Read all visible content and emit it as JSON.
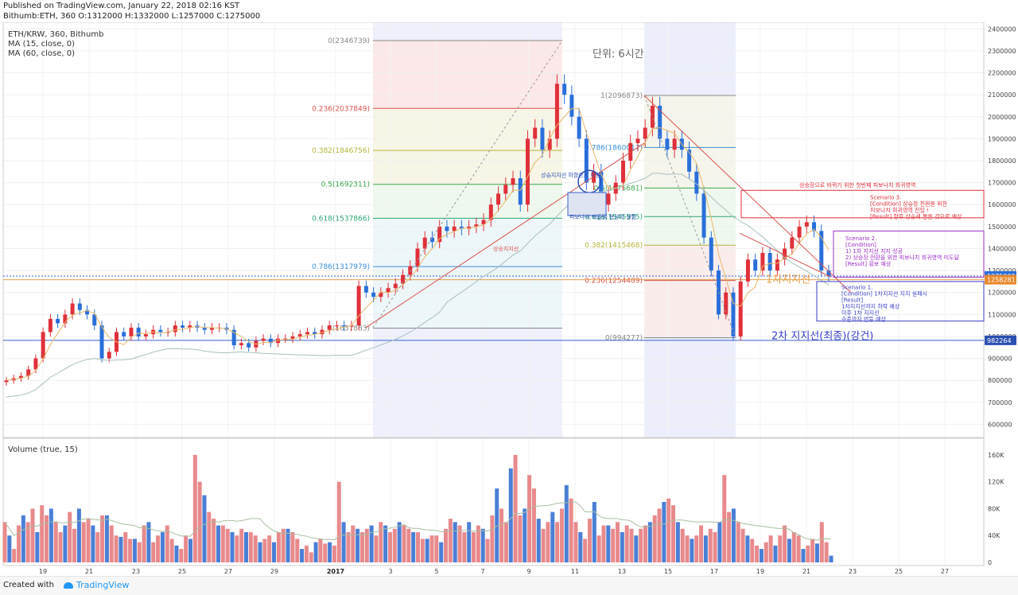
{
  "header": {
    "published": "Published on TradingView.com, January 22, 2018 02:16 KST",
    "ohlc": "Bithumb:ETH, 360 O:1312000 H:1332000 L:1257000 C:1275000"
  },
  "legend": {
    "symbol": "ETH/KRW, 360, Bithumb",
    "ma15": "MA (15, close, 0)",
    "ma60": "MA (60, close, 0)",
    "volume": "Volume (true, 15)"
  },
  "footer": {
    "created": "Created with",
    "brand": "TradingView"
  },
  "colors": {
    "up": "#e0303a",
    "down": "#2a6fdb",
    "volUp": "#e88a8c",
    "volDown": "#4a7fd6",
    "ma15": "#e8b86a",
    "ma60": "#a8bfbf"
  },
  "chart_data": {
    "type": "candlestick",
    "y_axis": {
      "ylim": [
        540000,
        2430000
      ],
      "ticks": [
        600000,
        700000,
        800000,
        900000,
        1000000,
        1100000,
        1200000,
        1300000,
        1400000,
        1500000,
        1600000,
        1700000,
        1800000,
        1900000,
        2000000,
        2100000,
        2200000,
        2300000,
        2400000
      ]
    },
    "x_ticks": [
      "19",
      "21",
      "23",
      "25",
      "27",
      "29",
      "2017",
      "3",
      "5",
      "7",
      "9",
      "11",
      "13",
      "15",
      "17",
      "19",
      "21",
      "23",
      "25",
      "27"
    ],
    "price_labels": {
      "last": "1275000",
      "orange": "1258281",
      "blue": "982264"
    },
    "candles_close": [
      800000,
      810000,
      820000,
      850000,
      900000,
      1020000,
      1080000,
      1060000,
      1100000,
      1150000,
      1120000,
      1100000,
      1050000,
      900000,
      930000,
      1020000,
      1000000,
      1040000,
      1000000,
      1010000,
      1030000,
      1020000,
      1020000,
      1050000,
      1040000,
      1050000,
      1040000,
      1030000,
      1040000,
      1040000,
      1030000,
      960000,
      970000,
      950000,
      980000,
      990000,
      970000,
      990000,
      990000,
      1000000,
      1010000,
      1020000,
      1010000,
      1030000,
      1050000,
      1050000,
      1045000,
      1050000,
      1230000,
      1200000,
      1180000,
      1200000,
      1220000,
      1240000,
      1280000,
      1320000,
      1400000,
      1450000,
      1430000,
      1500000,
      1480000,
      1500000,
      1490000,
      1500000,
      1510000,
      1530000,
      1600000,
      1650000,
      1690000,
      1720000,
      1600000,
      1900000,
      1950000,
      1850000,
      1900000,
      2150000,
      2100000,
      2000000,
      1900000,
      1700000,
      1750000,
      1600000,
      1650000,
      1700000,
      1800000,
      1880000,
      1900000,
      1950000,
      2050000,
      1900000,
      1850000,
      1900000,
      1850000,
      1750000,
      1650000,
      1450000,
      1300000,
      1100000,
      1200000,
      1000000,
      1250000,
      1350000,
      1300000,
      1380000,
      1300000,
      1350000,
      1400000,
      1450000,
      1500000,
      1520000,
      1480000,
      1300000,
      1275000
    ],
    "fib_left": {
      "levels": [
        "0(2346739)",
        "0.236(2037849)",
        "0.382(1846756)",
        "0.5(1692311)",
        "0.618(1537866)",
        "0.786(1317979)",
        "1(1037883)"
      ],
      "values": [
        2346739,
        2037849,
        1846756,
        1692311,
        1537866,
        1317979,
        1037883
      ]
    },
    "fib_right": {
      "levels": [
        "1(2096873)",
        "0.786(1860017)",
        "0.5(1675681)",
        "0.618(1545575)",
        "0.382(1415468)",
        "0.236(1254489)",
        "0(994277)"
      ],
      "values": [
        2096873,
        1860017,
        1675681,
        1545575,
        1415468,
        1254489,
        994277
      ]
    },
    "annotations": {
      "unit": "단위: 6시간",
      "support1": "1차지지선",
      "support2": "2차 지지선(최종)(강건)",
      "small_uptrend": "상승지지선",
      "small_break": "상승지지선 하향으로 이탈",
      "small_fib": "피보나치 되돌림 현상이 생함",
      "small_top": "상승장으로 바뀌기 위한 첫번째 피보나치 회귀영역",
      "scenario3": [
        "Scenario 3.",
        "[Condition] 상승장 전환을 위한",
        "피보나치 회귀영역 진입 !",
        "[Result] 향후 상승세 돌을 것으로 예상"
      ],
      "scenario2": [
        "Scenario 2.",
        "[Condition]",
        "1) 1차 지지선 지지 성공",
        "2) 상승장 전환을 위한 피보나치 회귀영역 미도달",
        "[Result] 횡보 예상"
      ],
      "scenario1": [
        "Scenario 1.",
        "[Condition] 1차지지선 지지 실패시",
        "[Result]",
        "1차지지선까지 하락 예상",
        "이후 1차 지지선",
        "수준까지 반등 예상"
      ]
    },
    "volume": {
      "y_ticks": [
        "160K",
        "120K",
        "80K",
        "40K",
        "0"
      ],
      "values": [
        60,
        40,
        20,
        55,
        70,
        60,
        80,
        45,
        85,
        70,
        80,
        60,
        45,
        55,
        75,
        50,
        80,
        60,
        65,
        55,
        45,
        70,
        70,
        55,
        40,
        38,
        45,
        35,
        35,
        30,
        55,
        60,
        30,
        40,
        45,
        55,
        35,
        25,
        20,
        40,
        35,
        160,
        120,
        100,
        75,
        65,
        55,
        55,
        50,
        45,
        40,
        50,
        45,
        45,
        40,
        30,
        35,
        40,
        30,
        45,
        50,
        50,
        45,
        35,
        20,
        25,
        15,
        30,
        35,
        28,
        30,
        25,
        120,
        60,
        45,
        55,
        50,
        45,
        50,
        55,
        40,
        60,
        55,
        45,
        50,
        60,
        55,
        50,
        45,
        45,
        35,
        35,
        40,
        40,
        30,
        50,
        65,
        60,
        55,
        45,
        60,
        45,
        55,
        50,
        35,
        70,
        110,
        80,
        60,
        140,
        160,
        70,
        80,
        130,
        110,
        65,
        50,
        60,
        75,
        60,
        80,
        115,
        95,
        60,
        45,
        35,
        65,
        90,
        40,
        55,
        55,
        50,
        60,
        45,
        55,
        50,
        40,
        50,
        55,
        60,
        70,
        80,
        90,
        95,
        85,
        60,
        50,
        40,
        35,
        40,
        55,
        40,
        50,
        45,
        60,
        130,
        75,
        80,
        60,
        50,
        40,
        35,
        25,
        20,
        30,
        40,
        25,
        40,
        55,
        35,
        45,
        40,
        20,
        25,
        35,
        28,
        60,
        30,
        10
      ]
    }
  }
}
